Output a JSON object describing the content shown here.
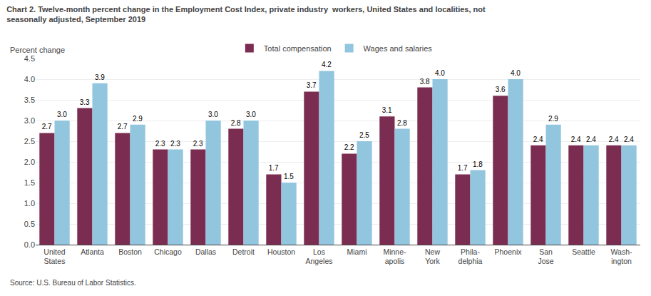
{
  "chart_data": {
    "type": "bar",
    "title": "Chart 2. Twelve-month percent change in the Employment Cost Index, private industry  workers, United States and localities, not\nseasonally adjusted, September 2019",
    "ylabel": "Percent change",
    "source": "Source: U.S. Bureau of Labor Statistics.",
    "categories": [
      "United\nStates",
      "Atlanta",
      "Boston",
      "Chicago",
      "Dallas",
      "Detroit",
      "Houston",
      "Los\nAngeles",
      "Miami",
      "Minne-\napolis",
      "New\nYork",
      "Phila-\ndelphia",
      "Phoenix",
      "San\nJose",
      "Seattle",
      "Wash-\nington"
    ],
    "series": [
      {
        "name": "Total compensation",
        "color": "#7B2D51",
        "values": [
          2.7,
          3.3,
          2.7,
          2.3,
          2.3,
          2.8,
          1.7,
          3.7,
          2.2,
          3.1,
          3.8,
          1.7,
          3.6,
          2.4,
          2.4,
          2.4
        ],
        "value_labels": [
          "2.7",
          "3.3",
          "2.7",
          "2.3",
          "2.3",
          "2.8",
          "1.7",
          "3.7",
          "2.2",
          "3.1",
          "3.8",
          "1.7",
          "3.6",
          "2.4",
          "2.4",
          "2.4"
        ]
      },
      {
        "name": "Wages and salaries",
        "color": "#92C5DE",
        "values": [
          3.0,
          3.9,
          2.9,
          2.3,
          3.0,
          3.0,
          1.5,
          4.2,
          2.5,
          2.8,
          4.0,
          1.8,
          4.0,
          2.9,
          2.4,
          2.4
        ],
        "value_labels": [
          "3.0",
          "3.9",
          "2.9",
          "2.3",
          "3.0",
          "3.0",
          "1.5",
          "4.2",
          "2.5",
          "2.8",
          "4.0",
          "1.8",
          "4.0",
          "2.9",
          "2.4",
          "2.4"
        ]
      }
    ],
    "ylim": [
      0,
      4.5
    ],
    "yticks": [
      {
        "value": 0,
        "label": "0.0"
      },
      0.5,
      {
        "value": 1,
        "label": "1.0"
      },
      1.5,
      {
        "value": 2,
        "label": "2.0"
      },
      2.5,
      {
        "value": 3,
        "label": "3.0"
      },
      3.5,
      {
        "value": 4,
        "label": "4.0"
      },
      4.5
    ],
    "grid": true,
    "legend": "top",
    "data_labels": true
  }
}
